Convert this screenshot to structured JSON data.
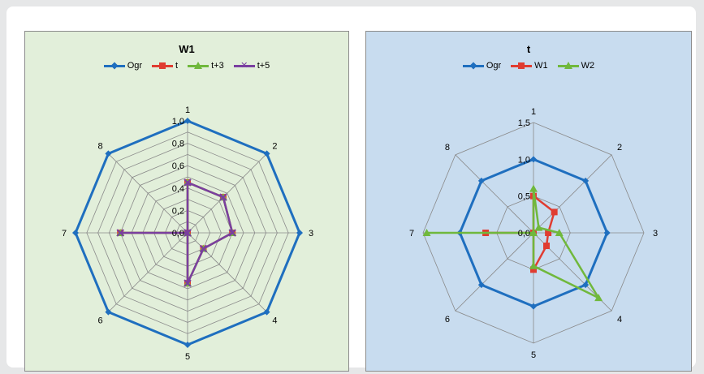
{
  "chart_data": [
    {
      "type": "radar",
      "title": "W1",
      "background": "#e2efda",
      "categories": [
        "1",
        "2",
        "3",
        "4",
        "5",
        "6",
        "7",
        "8"
      ],
      "rmax": 1.0,
      "ticks": [
        0.0,
        0.2,
        0.4,
        0.6,
        0.8,
        1.0
      ],
      "tick_labels": [
        "0,0",
        "0,2",
        "0,4",
        "0,6",
        "0,8",
        "1,0"
      ],
      "gridline_count": 10,
      "series": [
        {
          "name": "Ogr",
          "color": "#1f6fbf",
          "marker": "diamond",
          "values": [
            1.0,
            1.0,
            1.0,
            1.0,
            1.0,
            1.0,
            1.0,
            1.0
          ]
        },
        {
          "name": "t",
          "color": "#e03c31",
          "marker": "square",
          "values": [
            0.45,
            0.45,
            0.4,
            0.2,
            0.45,
            0.0,
            0.6,
            0.0
          ]
        },
        {
          "name": "t+3",
          "color": "#70b83c",
          "marker": "triangle",
          "values": [
            0.45,
            0.45,
            0.4,
            0.2,
            0.45,
            0.0,
            0.6,
            0.0
          ]
        },
        {
          "name": "t+5",
          "color": "#7a3fa0",
          "marker": "x",
          "values": [
            0.45,
            0.45,
            0.4,
            0.2,
            0.45,
            0.0,
            0.6,
            0.0
          ]
        }
      ]
    },
    {
      "type": "radar",
      "title": "t",
      "background": "#c8dcef",
      "categories": [
        "1",
        "2",
        "3",
        "4",
        "5",
        "6",
        "7",
        "8"
      ],
      "rmax": 1.5,
      "ticks": [
        0.0,
        0.5,
        1.0,
        1.5
      ],
      "tick_labels": [
        "0,0",
        "0,5",
        "1,0",
        "1,5"
      ],
      "gridline_count": 3,
      "series": [
        {
          "name": "Ogr",
          "color": "#1f6fbf",
          "marker": "diamond",
          "values": [
            1.0,
            1.0,
            1.0,
            1.0,
            1.0,
            1.0,
            1.0,
            1.0
          ]
        },
        {
          "name": "W1",
          "color": "#e03c31",
          "marker": "square",
          "values": [
            0.5,
            0.4,
            0.2,
            0.25,
            0.5,
            0.0,
            0.65,
            0.0
          ]
        },
        {
          "name": "W2",
          "color": "#70b83c",
          "marker": "triangle",
          "values": [
            0.6,
            0.1,
            0.35,
            1.25,
            0.45,
            0.0,
            1.45,
            0.0
          ]
        }
      ]
    }
  ]
}
